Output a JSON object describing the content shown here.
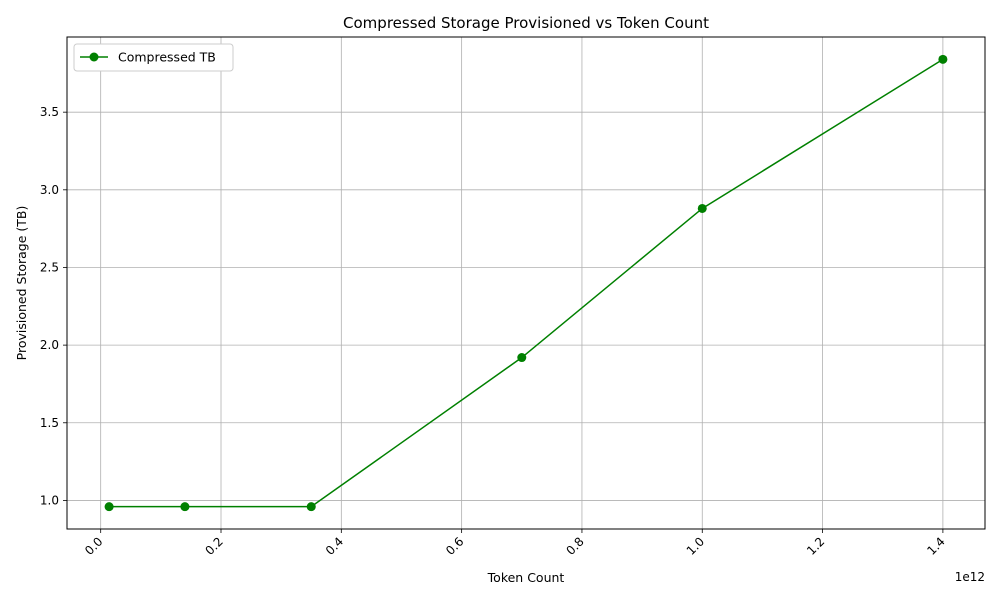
{
  "chart_data": {
    "type": "line",
    "title": "Compressed Storage Provisioned vs Token Count",
    "xlabel": "Token Count",
    "ylabel": "Provisioned Storage (TB)",
    "x_offset_label": "1e12",
    "x": [
      14000000000,
      140000000000,
      350000000000,
      700000000000,
      1000000000000,
      1400000000000
    ],
    "series": [
      {
        "name": "Compressed TB",
        "color": "#008000",
        "values": [
          0.96,
          0.96,
          0.96,
          1.92,
          2.88,
          3.84
        ]
      }
    ],
    "xlim": [
      -56000000000.0,
      1470000000000.0
    ],
    "ylim": [
      0.816,
      3.984
    ],
    "x_ticks": [
      0,
      200000000000,
      400000000000,
      600000000000,
      800000000000,
      1000000000000,
      1200000000000,
      1400000000000
    ],
    "x_tick_labels": [
      "0.0",
      "0.2",
      "0.4",
      "0.6",
      "0.8",
      "1.0",
      "1.2",
      "1.4"
    ],
    "y_ticks": [
      1.0,
      1.5,
      2.0,
      2.5,
      3.0,
      3.5
    ],
    "y_tick_labels": [
      "1.0",
      "1.5",
      "2.0",
      "2.5",
      "3.0",
      "3.5"
    ],
    "grid": true,
    "legend": "top-left",
    "marker": "circle"
  }
}
